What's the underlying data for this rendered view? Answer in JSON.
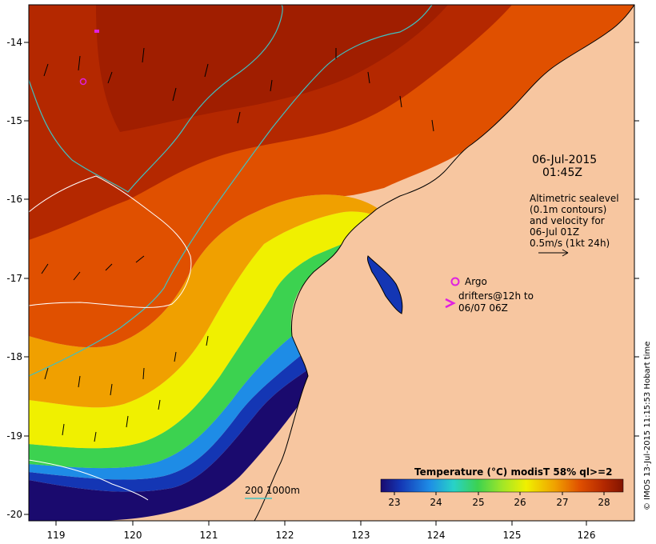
{
  "timestamp": {
    "date": "06-Jul-2015",
    "time": "01:45Z"
  },
  "altimetry_note": [
    "Altimetric sealevel",
    "(0.1m contours)",
    "and velocity for",
    "06-Jul 01Z",
    "0.5m/s (1kt 24h)"
  ],
  "legend": {
    "argo_label": "Argo",
    "drifters_line1": "drifters@12h to",
    "drifters_line2": "06/07 06Z",
    "depth_contours": "200  1000m"
  },
  "colorbar": {
    "title": "Temperature (°C) modisT 58% ql>=2",
    "ticks": [
      "23",
      "24",
      "25",
      "26",
      "27",
      "28"
    ],
    "range": [
      22.7,
      28.5
    ],
    "colors": [
      "#1a0a6e",
      "#1436b4",
      "#1e8ce6",
      "#28d2c8",
      "#3cd250",
      "#a0e628",
      "#f0f000",
      "#f0a000",
      "#e05000",
      "#b42800",
      "#821400"
    ]
  },
  "axes": {
    "x_ticks": [
      "119",
      "120",
      "121",
      "122",
      "123",
      "124",
      "125",
      "126"
    ],
    "y_ticks": [
      "-14",
      "-15",
      "-16",
      "-17",
      "-18",
      "-19",
      "-20"
    ],
    "lon_range": [
      118.65,
      126.65
    ],
    "lat_range": [
      -13.65,
      -20.1
    ]
  },
  "credit": "© IMOS 13-Jul-2015 11:15:53 Hobart time",
  "colors": {
    "land": "#f7c6a0",
    "argo": "#e020e0",
    "depth_contour": "#40c0c0",
    "sealevel_contour": "#ffffff"
  }
}
